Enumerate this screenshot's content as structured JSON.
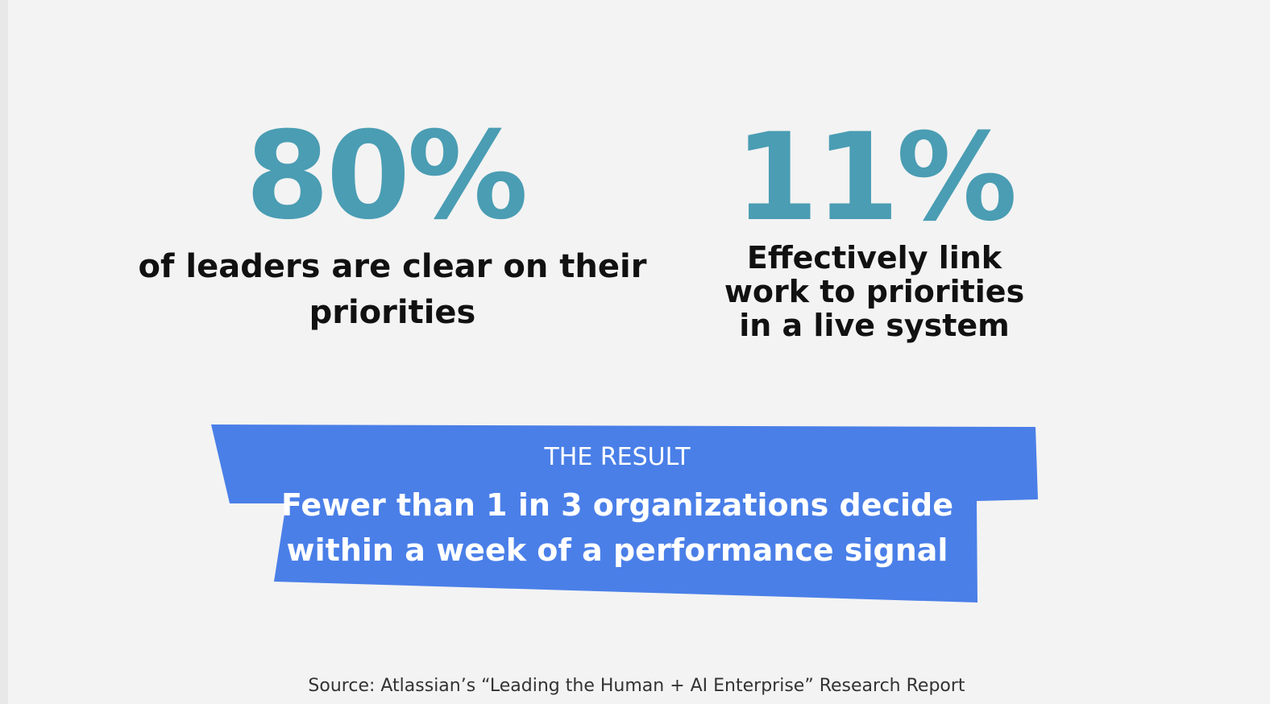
{
  "stats": [
    {
      "figure": "80%",
      "caption_lines": [
        "of leaders are clear on their",
        "priorities"
      ]
    },
    {
      "figure": "11%",
      "caption_lines": [
        "Effectively link",
        "work to priorities",
        "in a live system"
      ]
    }
  ],
  "result": {
    "label": "THE RESULT",
    "lines": [
      "Fewer than 1 in 3 organizations decide",
      "within a week of a performance signal"
    ]
  },
  "source": "Source: Atlassian’s “Leading the Human + AI Enterprise” Research Report"
}
